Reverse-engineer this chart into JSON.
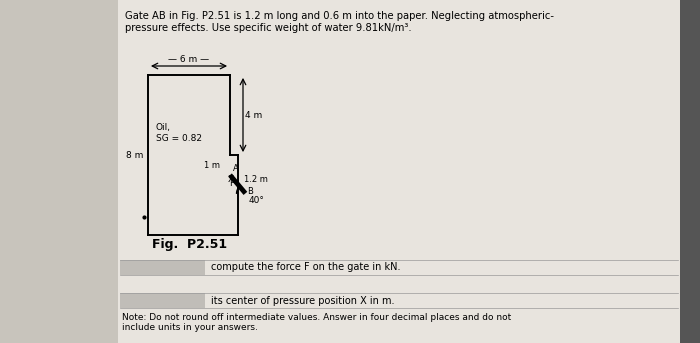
{
  "title_text": "Gate AB in Fig. P2.51 is 1.2 m long and 0.6 m into the paper. Neglecting atmospheric-\npressure effects. Use specific weight of water 9.81kN/m³.",
  "fig_label": "Fig.  P2.51",
  "question1": "compute the force F on the gate in kN.",
  "question2": "its center of pressure position X in m.",
  "note": "Note: Do not round off intermediate values. Answer in four decimal places and do not\ninclude units in your answers.",
  "bg_left": "#c8c4bc",
  "bg_main": "#e8e4de",
  "bg_right": "#555555",
  "answer_box_color": "#c0bdb8",
  "line_color": "#999999"
}
